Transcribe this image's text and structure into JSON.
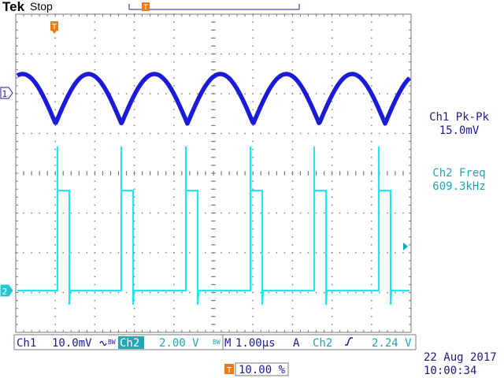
{
  "header": {
    "brand": "Tek",
    "run_state": "Stop"
  },
  "colors": {
    "ch1": "#1a1ad8",
    "ch2": "#22e6ee",
    "ch1_label": "#1a1a9c",
    "ch2_label": "#17a7b3",
    "trigger": "#f07a16",
    "graticule": "#7a7a7a"
  },
  "markers": {
    "ch1": "1",
    "ch2": "2",
    "trigger": "T"
  },
  "measurements": [
    {
      "label": "Ch1 Pk-Pk",
      "value": "15.0mV"
    },
    {
      "label": "Ch2 Freq",
      "value": "609.3kHz"
    }
  ],
  "footer": {
    "ch1_name": "Ch1",
    "ch1_scale": "10.0mV",
    "ch1_coupling_icon": "ac-coupling-icon",
    "ch1_bw_icon": "bw-limit-icon",
    "ch2_name": "Ch2",
    "ch2_scale": "2.00 V",
    "ch2_bw_icon": "bw-limit-icon",
    "timebase_prefix": "M",
    "timebase": "1.00µs",
    "trigger_mode": "A",
    "trigger_source": "Ch2",
    "trigger_slope_icon": "rising-edge-icon",
    "trigger_level": "2.24 V",
    "trigger_position": "10.00 %",
    "date": "22 Aug 2017",
    "time": "10:00:34"
  },
  "waveforms": {
    "ch1": {
      "type": "rectified-sine",
      "cycles": 6
    },
    "ch2": {
      "type": "pulse-train",
      "pulses": 6
    }
  }
}
